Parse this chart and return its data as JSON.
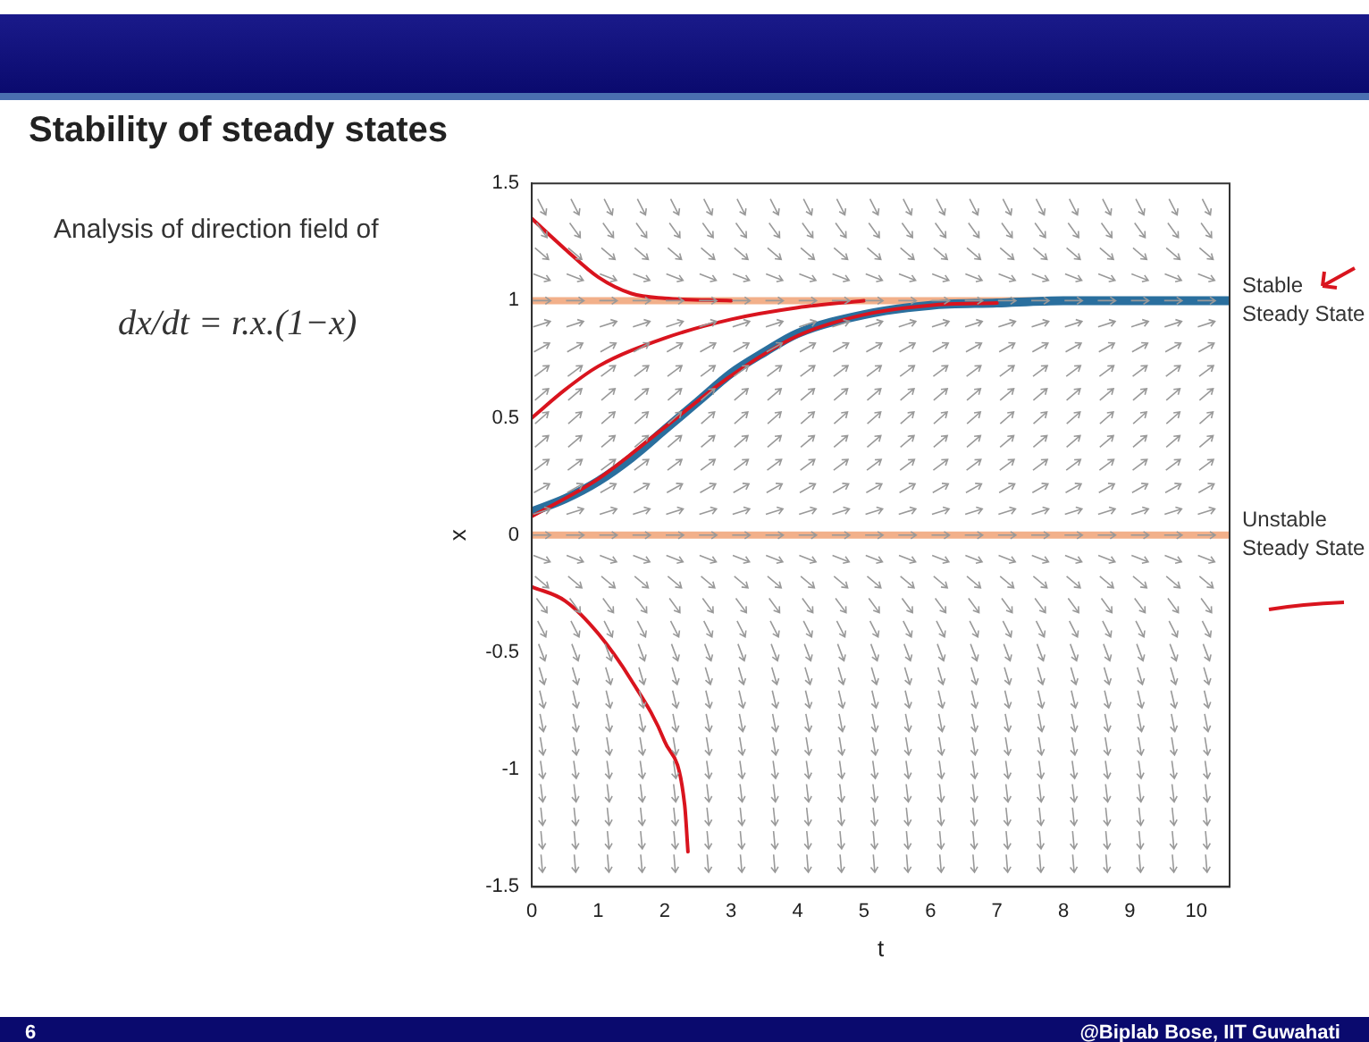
{
  "chart_data": {
    "type": "line",
    "title": "Stability of steady states",
    "annotations": [
      "Analysis of direction field of",
      "dx/dt = r.x.(1−x)",
      "6",
      "@Biplab Bose, IIT Guwahati"
    ],
    "xlabel": "t",
    "ylabel": "x",
    "xlim": [
      0,
      10.5
    ],
    "ylim": [
      -1.5,
      1.5
    ],
    "xticks": [
      0,
      1,
      2,
      3,
      4,
      5,
      6,
      7,
      8,
      9,
      10
    ],
    "yticks": [
      -1.5,
      -1,
      -0.5,
      0,
      0.5,
      1,
      1.5
    ],
    "grid": false,
    "legend": false,
    "marker": "none",
    "line_style": "solid",
    "series": [
      {
        "color": "#2a6f9e",
        "x": [
          0,
          0.5,
          1,
          1.5,
          2,
          2.5,
          3,
          3.5,
          4,
          5,
          6,
          7,
          8,
          9,
          10.5
        ],
        "values": [
          0.1,
          0.155,
          0.23,
          0.33,
          0.45,
          0.57,
          0.69,
          0.78,
          0.86,
          0.94,
          0.98,
          0.99,
          1,
          1,
          1
        ]
      },
      {
        "color": "#d9141e",
        "x": [
          0,
          0.5,
          1,
          1.5,
          2,
          3
        ],
        "values": [
          1.35,
          1.22,
          1.1,
          1.03,
          1.01,
          1
        ]
      },
      {
        "color": "#d9141e",
        "x": [
          0,
          0.5,
          1,
          2,
          3,
          4,
          5
        ],
        "values": [
          0.5,
          0.62,
          0.72,
          0.84,
          0.92,
          0.97,
          1
        ]
      },
      {
        "color": "#d9141e",
        "x": [
          0,
          1,
          2,
          3,
          4,
          5,
          6,
          7
        ],
        "values": [
          0.08,
          0.24,
          0.46,
          0.68,
          0.85,
          0.94,
          0.98,
          0.99
        ]
      },
      {
        "color": "#d9141e",
        "x": [
          0,
          0.5,
          1,
          1.5,
          2,
          2.3,
          2.35
        ],
        "values": [
          -0.22,
          -0.28,
          -0.42,
          -0.62,
          -0.88,
          -1.15,
          -1.35
        ]
      }
    ],
    "ref_lines": [
      {
        "axis": "y",
        "value": 1,
        "label": "Stable Steady State",
        "color": "#f2b08a"
      },
      {
        "axis": "y",
        "value": 0,
        "label": "Unstable Steady State",
        "color": "#f2b08a"
      }
    ]
  }
}
